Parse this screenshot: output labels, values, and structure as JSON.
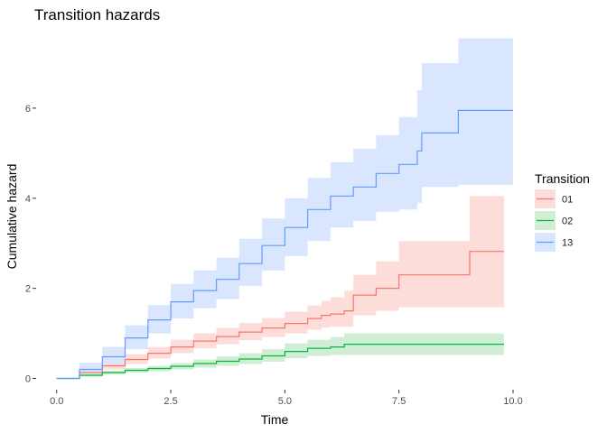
{
  "chart_data": {
    "type": "line",
    "title": "Transition hazards",
    "xlabel": "Time",
    "ylabel": "Cumulative hazard",
    "xlim": [
      -0.45,
      10.0
    ],
    "ylim": [
      -0.25,
      7.6
    ],
    "x_ticks": [
      0.0,
      2.5,
      5.0,
      7.5,
      10.0
    ],
    "x_tick_labels": [
      "0.0",
      "2.5",
      "5.0",
      "7.5",
      "10.0"
    ],
    "y_ticks": [
      0,
      2,
      4,
      6
    ],
    "y_tick_labels": [
      "0",
      "2",
      "4",
      "6"
    ],
    "grid": false,
    "legend": {
      "title": "Transition",
      "position": "right"
    },
    "series": [
      {
        "name": "01",
        "color": "#F8766D",
        "fill": "#FDDDDA",
        "x": [
          0.0,
          0.5,
          1.0,
          1.5,
          2.0,
          2.5,
          3.0,
          3.5,
          4.0,
          4.5,
          5.0,
          5.5,
          5.8,
          6.0,
          6.3,
          6.5,
          7.0,
          7.5,
          8.0,
          8.5,
          9.0,
          9.05,
          9.8
        ],
        "y": [
          0.0,
          0.13,
          0.28,
          0.42,
          0.56,
          0.7,
          0.83,
          0.93,
          1.03,
          1.12,
          1.22,
          1.33,
          1.4,
          1.43,
          1.5,
          1.85,
          2.0,
          2.3,
          2.3,
          2.3,
          2.3,
          2.82,
          2.82
        ],
        "lower": [
          0.0,
          0.08,
          0.2,
          0.32,
          0.44,
          0.56,
          0.67,
          0.76,
          0.85,
          0.92,
          1.0,
          1.08,
          1.13,
          1.15,
          1.15,
          1.4,
          1.5,
          1.58,
          1.58,
          1.58,
          1.58,
          1.58,
          1.58
        ],
        "upper": [
          0.0,
          0.2,
          0.38,
          0.54,
          0.7,
          0.86,
          1.0,
          1.12,
          1.23,
          1.34,
          1.48,
          1.62,
          1.72,
          1.8,
          1.95,
          2.3,
          2.6,
          3.05,
          3.05,
          3.05,
          3.05,
          4.05,
          4.05
        ]
      },
      {
        "name": "02",
        "color": "#00BA38",
        "fill": "#D0EDD5",
        "x": [
          0.0,
          0.5,
          1.0,
          1.5,
          2.0,
          2.5,
          3.0,
          3.5,
          4.0,
          4.5,
          5.0,
          5.5,
          6.0,
          6.3,
          7.0,
          8.0,
          9.0,
          9.8
        ],
        "y": [
          0.0,
          0.07,
          0.13,
          0.18,
          0.22,
          0.27,
          0.33,
          0.38,
          0.43,
          0.5,
          0.6,
          0.67,
          0.7,
          0.76,
          0.76,
          0.76,
          0.76,
          0.76
        ],
        "lower": [
          0.0,
          0.04,
          0.09,
          0.13,
          0.16,
          0.2,
          0.24,
          0.28,
          0.32,
          0.37,
          0.45,
          0.5,
          0.52,
          0.52,
          0.52,
          0.52,
          0.52,
          0.52
        ],
        "upper": [
          0.0,
          0.1,
          0.17,
          0.23,
          0.28,
          0.34,
          0.42,
          0.49,
          0.56,
          0.65,
          0.78,
          0.86,
          0.92,
          1.0,
          1.0,
          1.0,
          1.0,
          1.0
        ]
      },
      {
        "name": "13",
        "color": "#619CFF",
        "fill": "#DAE6FE",
        "x": [
          0.0,
          0.5,
          1.0,
          1.5,
          2.0,
          2.5,
          3.0,
          3.5,
          4.0,
          4.5,
          5.0,
          5.5,
          6.0,
          6.5,
          7.0,
          7.5,
          7.9,
          8.0,
          8.8,
          9.0,
          10.0
        ],
        "y": [
          0.0,
          0.2,
          0.48,
          0.9,
          1.3,
          1.7,
          1.95,
          2.2,
          2.55,
          2.95,
          3.35,
          3.75,
          4.05,
          4.25,
          4.55,
          4.75,
          5.05,
          5.45,
          5.95,
          5.95,
          5.95
        ],
        "lower": [
          0.0,
          0.1,
          0.32,
          0.65,
          1.0,
          1.33,
          1.56,
          1.76,
          2.05,
          2.4,
          2.72,
          3.05,
          3.35,
          3.5,
          3.7,
          3.75,
          3.9,
          4.25,
          4.3,
          4.3,
          4.3
        ],
        "upper": [
          0.0,
          0.35,
          0.7,
          1.18,
          1.63,
          2.1,
          2.4,
          2.68,
          3.1,
          3.55,
          4.0,
          4.45,
          4.8,
          5.1,
          5.4,
          5.8,
          6.4,
          7.0,
          7.55,
          7.55,
          7.55
        ]
      }
    ]
  }
}
